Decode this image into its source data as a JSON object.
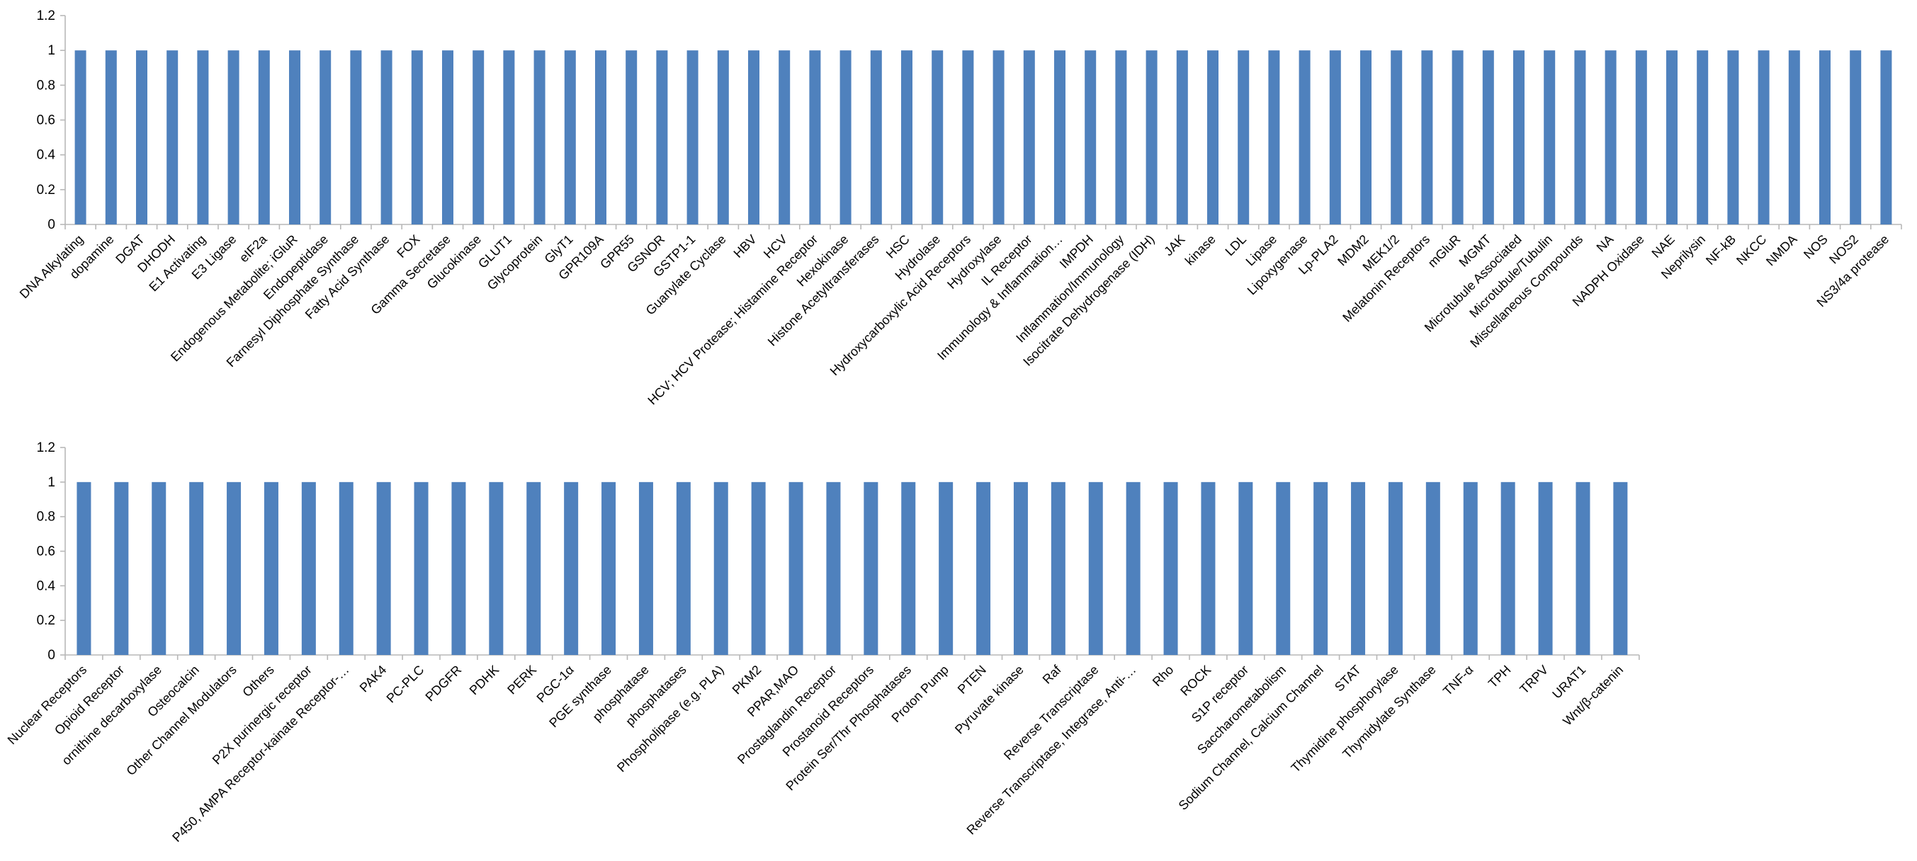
{
  "chart_data": [
    {
      "type": "bar",
      "ylim": [
        0,
        1.2
      ],
      "yticks": [
        "0",
        "0.2",
        "0.4",
        "0.6",
        "0.8",
        "1",
        "1.2"
      ],
      "grid": false,
      "color": "#4f81bd",
      "categories": [
        "DNA Alkylating",
        "dopamine",
        "DGAT",
        "DHODH",
        "E1 Activating",
        "E3 Ligase",
        "eIF2a",
        "Endogenous Metabolite; iGluR",
        "Endopeptidase",
        "Farnesyl Diphosphate Synthase",
        "Fatty Acid Synthase",
        "FOX",
        "Gamma Secretase",
        "Glucokinase",
        "GLUT1",
        "Glycoprotein",
        "GlyT1",
        "GPR109A",
        "GPR55",
        "GSNOR",
        "GSTP1-1",
        "Guanylate Cyclase",
        "HBV",
        "HCV",
        "HCV; HCV Protease; Histamine Receptor",
        "Hexokinase",
        "Histone Acetyltransferases",
        "HSC",
        "Hydrolase",
        "Hydroxycarboxylic Acid Receptors",
        "Hydroxylase",
        "IL Receptor",
        "Immunology & Inflammation…",
        "IMPDH",
        "Inflammation/Immunology",
        "Isocitrate Dehydrogenase (IDH)",
        "JAK",
        "kinase",
        "LDL",
        "Lipase",
        "Lipoxygenase",
        "Lp-PLA2",
        "MDM2",
        "MEK1/2",
        "Melatonin Receptors",
        "mGluR",
        "MGMT",
        "Microtubule Associated",
        "Microtubule/Tubulin",
        "Miscellaneous Compounds",
        "NA",
        "NADPH Oxidase",
        "NAE",
        "Neprilysin",
        "NF-kB",
        "NKCC",
        "NMDA",
        "NOS",
        "NOS2",
        "NS3/4a protease"
      ],
      "values": [
        1,
        1,
        1,
        1,
        1,
        1,
        1,
        1,
        1,
        1,
        1,
        1,
        1,
        1,
        1,
        1,
        1,
        1,
        1,
        1,
        1,
        1,
        1,
        1,
        1,
        1,
        1,
        1,
        1,
        1,
        1,
        1,
        1,
        1,
        1,
        1,
        1,
        1,
        1,
        1,
        1,
        1,
        1,
        1,
        1,
        1,
        1,
        1,
        1,
        1,
        1,
        1,
        1,
        1,
        1,
        1,
        1,
        1,
        1,
        1
      ]
    },
    {
      "type": "bar",
      "ylim": [
        0,
        1.2
      ],
      "yticks": [
        "0",
        "0.2",
        "0.4",
        "0.6",
        "0.8",
        "1",
        "1.2"
      ],
      "grid": false,
      "color": "#4f81bd",
      "categories": [
        "Nuclear Receptors",
        "Opioid Receptor",
        "ornithine decarboxylase",
        "Osteocalcin",
        "Other Channel Modulators",
        "Others",
        "P2X purinergic receptor",
        "P450, AMPA Receptor-kainate Receptor-…",
        "PAK4",
        "PC-PLC",
        "PDGFR",
        "PDHK",
        "PERK",
        "PGC-1α",
        "PGE synthase",
        "phosphatase",
        "phosphatases",
        "Phospholipase (e.g. PLA)",
        "PKM2",
        "PPAR,MAO",
        "Prostaglandin Receptor",
        "Prostanoid Receptors",
        "Protein Ser/Thr Phosphatases",
        "Proton Pump",
        "PTEN",
        "Pyruvate kinase",
        "Raf",
        "Reverse Transcriptase",
        "Reverse Transcriptase, Integrase, Anti-…",
        "Rho",
        "ROCK",
        "S1P receptor",
        "Saccharometabolism",
        "Sodium Channel, Calcium Channel",
        "STAT",
        "Thymidine phosphorylase",
        "Thymidylate Synthase",
        "TNF-α",
        "TPH",
        "TRPV",
        "URAT1",
        "Wnt/β-catenin"
      ],
      "values": [
        1,
        1,
        1,
        1,
        1,
        1,
        1,
        1,
        1,
        1,
        1,
        1,
        1,
        1,
        1,
        1,
        1,
        1,
        1,
        1,
        1,
        1,
        1,
        1,
        1,
        1,
        1,
        1,
        1,
        1,
        1,
        1,
        1,
        1,
        1,
        1,
        1,
        1,
        1,
        1,
        1,
        1
      ]
    }
  ]
}
